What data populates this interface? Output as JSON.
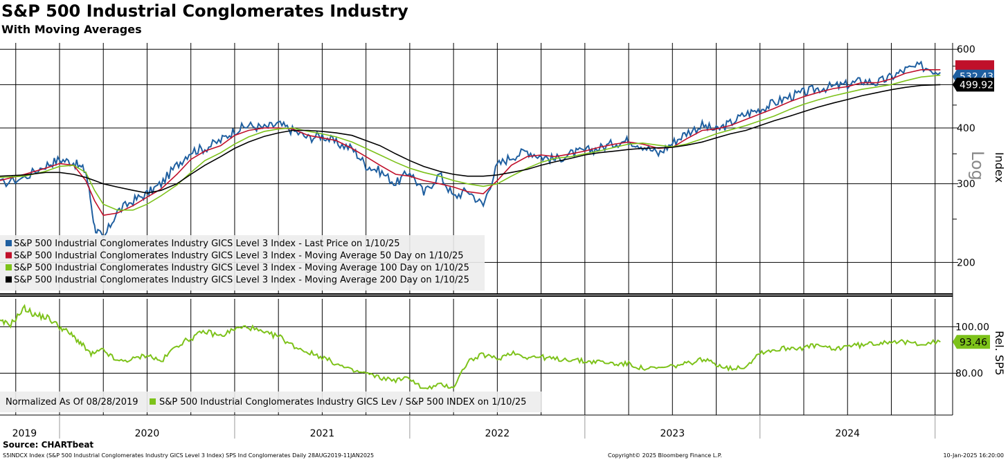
{
  "header": {
    "title": "S&P 500 Industrial Conglomerates Industry",
    "subtitle": "With Moving Averages"
  },
  "footer": {
    "source": "Source: CHARTbeat",
    "ticker_info": "S5INDCX Index (S&P 500 Industrial Conglomerates Industry GICS Level 3 Index) SPS Ind Conglomerates  Daily 28AUG2019-11JAN2025",
    "copyright": "Copyright© 2025 Bloomberg Finance L.P.",
    "timestamp": "10-Jan-2025 16:20:00"
  },
  "colors": {
    "last_price": "#1f5fa0",
    "ma50": "#c0102a",
    "ma100": "#7dc21a",
    "ma200": "#000000",
    "relative": "#7dc21a",
    "grid": "#000000",
    "legend_bg": "#ececec"
  },
  "chart_data": [
    {
      "type": "line",
      "title": "S&P 500 Industrial Conglomerates Industry",
      "ylabel": "Index",
      "scale_label": "Log",
      "yscale": "log",
      "ylim": [
        170,
        620
      ],
      "y_ticks": [
        600,
        400,
        300,
        200
      ],
      "y_tick_labels": [
        "600",
        "400",
        "300",
        "200"
      ],
      "x_labels": [
        "2019",
        "2020",
        "2021",
        "2022",
        "2023",
        "2024"
      ],
      "x_label_dates": [
        2019.8,
        2020.5,
        2021.5,
        2022.5,
        2023.5,
        2024.5
      ],
      "xlim": [
        2019.66,
        2025.1
      ],
      "x": [
        2019.66,
        2019.8,
        2019.92,
        2020.0,
        2020.08,
        2020.15,
        2020.2,
        2020.25,
        2020.33,
        2020.42,
        2020.5,
        2020.58,
        2020.67,
        2020.75,
        2020.83,
        2020.92,
        2021.0,
        2021.08,
        2021.17,
        2021.25,
        2021.33,
        2021.42,
        2021.5,
        2021.58,
        2021.67,
        2021.75,
        2021.83,
        2021.92,
        2022.0,
        2022.08,
        2022.17,
        2022.25,
        2022.33,
        2022.42,
        2022.5,
        2022.58,
        2022.67,
        2022.75,
        2022.83,
        2022.92,
        2023.0,
        2023.08,
        2023.17,
        2023.25,
        2023.33,
        2023.42,
        2023.5,
        2023.58,
        2023.67,
        2023.75,
        2023.83,
        2023.92,
        2024.0,
        2024.08,
        2024.17,
        2024.25,
        2024.33,
        2024.42,
        2024.5,
        2024.58,
        2024.67,
        2024.75,
        2024.83,
        2024.92,
        2025.03
      ],
      "series": [
        {
          "name": "S&P 500 Industrial Conglomerates Industry GICS Level 3 Index - Last Price on 1/10/25",
          "values": [
            300,
            310,
            330,
            340,
            335,
            320,
            240,
            225,
            260,
            275,
            285,
            300,
            330,
            355,
            360,
            375,
            395,
            405,
            400,
            408,
            395,
            380,
            385,
            370,
            360,
            330,
            320,
            300,
            320,
            285,
            315,
            280,
            290,
            268,
            330,
            345,
            355,
            345,
            340,
            350,
            355,
            360,
            370,
            375,
            365,
            350,
            370,
            390,
            405,
            395,
            410,
            430,
            440,
            455,
            470,
            480,
            490,
            495,
            500,
            510,
            505,
            520,
            540,
            550,
            532.43
          ]
        },
        {
          "name": "S&P 500 Industrial Conglomerates Industry GICS Level 3 Index - Moving Average 50 Day on 1/10/25",
          "values": [
            305,
            315,
            325,
            333,
            330,
            305,
            275,
            255,
            258,
            268,
            280,
            292,
            315,
            340,
            355,
            365,
            385,
            395,
            400,
            400,
            398,
            385,
            380,
            375,
            360,
            345,
            330,
            315,
            312,
            305,
            300,
            295,
            288,
            285,
            305,
            330,
            345,
            348,
            345,
            350,
            355,
            362,
            368,
            372,
            368,
            360,
            362,
            378,
            395,
            398,
            405,
            418,
            430,
            442,
            458,
            470,
            480,
            490,
            495,
            505,
            505,
            515,
            530,
            540,
            540
          ]
        },
        {
          "name": "S&P 500 Industrial Conglomerates Industry GICS Level 3 Index - Moving Average 100 Day on 1/10/25",
          "values": [
            310,
            312,
            320,
            328,
            330,
            318,
            290,
            270,
            262,
            262,
            270,
            282,
            298,
            318,
            338,
            352,
            368,
            382,
            393,
            398,
            400,
            393,
            388,
            382,
            372,
            360,
            348,
            335,
            325,
            318,
            312,
            305,
            300,
            296,
            300,
            312,
            325,
            335,
            342,
            345,
            350,
            355,
            362,
            368,
            370,
            366,
            363,
            368,
            378,
            388,
            396,
            405,
            415,
            425,
            440,
            452,
            462,
            472,
            480,
            488,
            494,
            500,
            510,
            520,
            525
          ]
        },
        {
          "name": "S&P 500 Industrial Conglomerates Industry GICS Level 3 Index - Moving Average 200 Day on 1/10/25",
          "values": [
            312,
            314,
            318,
            318,
            315,
            310,
            305,
            300,
            295,
            290,
            286,
            290,
            300,
            315,
            330,
            345,
            360,
            372,
            383,
            390,
            395,
            395,
            393,
            390,
            385,
            375,
            365,
            350,
            338,
            328,
            320,
            315,
            312,
            312,
            314,
            318,
            323,
            330,
            336,
            342,
            348,
            352,
            355,
            358,
            360,
            361,
            362,
            366,
            372,
            380,
            388,
            395,
            405,
            415,
            425,
            435,
            445,
            455,
            463,
            472,
            480,
            487,
            493,
            498,
            499.92
          ]
        }
      ],
      "value_labels": [
        "532.43",
        "499.92"
      ],
      "legend": [
        "S&P 500 Industrial Conglomerates Industry GICS Level 3 Index - Last Price on 1/10/25",
        "S&P 500 Industrial Conglomerates Industry GICS Level 3 Index - Moving Average 50 Day on 1/10/25",
        "S&P 500 Industrial Conglomerates Industry GICS Level 3 Index - Moving Average 100 Day on 1/10/25",
        "S&P 500 Industrial Conglomerates Industry GICS Level 3 Index - Moving Average 200 Day on 1/10/25"
      ],
      "legend_position": "bottom-left"
    },
    {
      "type": "line",
      "ylabel": "Rel. SP5",
      "yscale": "linear",
      "ylim": [
        62,
        112
      ],
      "y_ticks": [
        100,
        80
      ],
      "y_tick_labels": [
        "100.00",
        "80.00"
      ],
      "x": [
        2019.66,
        2019.72,
        2019.8,
        2019.86,
        2019.93,
        2020.0,
        2020.06,
        2020.12,
        2020.18,
        2020.25,
        2020.33,
        2020.42,
        2020.5,
        2020.58,
        2020.67,
        2020.75,
        2020.83,
        2020.92,
        2021.0,
        2021.08,
        2021.17,
        2021.25,
        2021.33,
        2021.42,
        2021.5,
        2021.58,
        2021.67,
        2021.75,
        2021.83,
        2021.92,
        2022.0,
        2022.08,
        2022.17,
        2022.25,
        2022.33,
        2022.42,
        2022.5,
        2022.58,
        2022.67,
        2022.75,
        2022.83,
        2022.92,
        2023.0,
        2023.08,
        2023.17,
        2023.25,
        2023.33,
        2023.42,
        2023.5,
        2023.58,
        2023.67,
        2023.75,
        2023.83,
        2023.92,
        2024.0,
        2024.08,
        2024.17,
        2024.25,
        2024.33,
        2024.42,
        2024.5,
        2024.58,
        2024.67,
        2024.75,
        2024.83,
        2024.92,
        2025.03
      ],
      "series": [
        {
          "name": "S&P 500 Industrial Conglomerates Industry GICS Lev / S&P 500 INDEX on 1/10/25",
          "values": [
            102,
            101,
            108,
            105,
            104,
            100,
            97,
            93,
            88,
            90,
            85,
            86,
            88,
            85,
            92,
            95,
            98,
            96,
            99,
            100,
            97,
            96,
            92,
            89,
            87,
            84,
            81,
            80,
            78,
            77,
            78,
            73,
            75,
            74,
            85,
            88,
            86,
            89,
            87,
            87,
            86,
            86,
            85,
            85,
            84,
            84,
            82,
            82,
            83,
            84,
            86,
            84,
            82,
            83,
            89,
            90,
            91,
            91,
            92,
            90,
            92,
            92,
            93,
            94,
            93,
            93,
            93.46
          ]
        }
      ],
      "value_labels": [
        "93.46"
      ],
      "legend": [
        "Normalized As Of 08/28/2019",
        "S&P 500 Industrial Conglomerates Industry GICS Lev / S&P 500 INDEX on 1/10/25"
      ],
      "legend_position": "bottom-left"
    }
  ]
}
